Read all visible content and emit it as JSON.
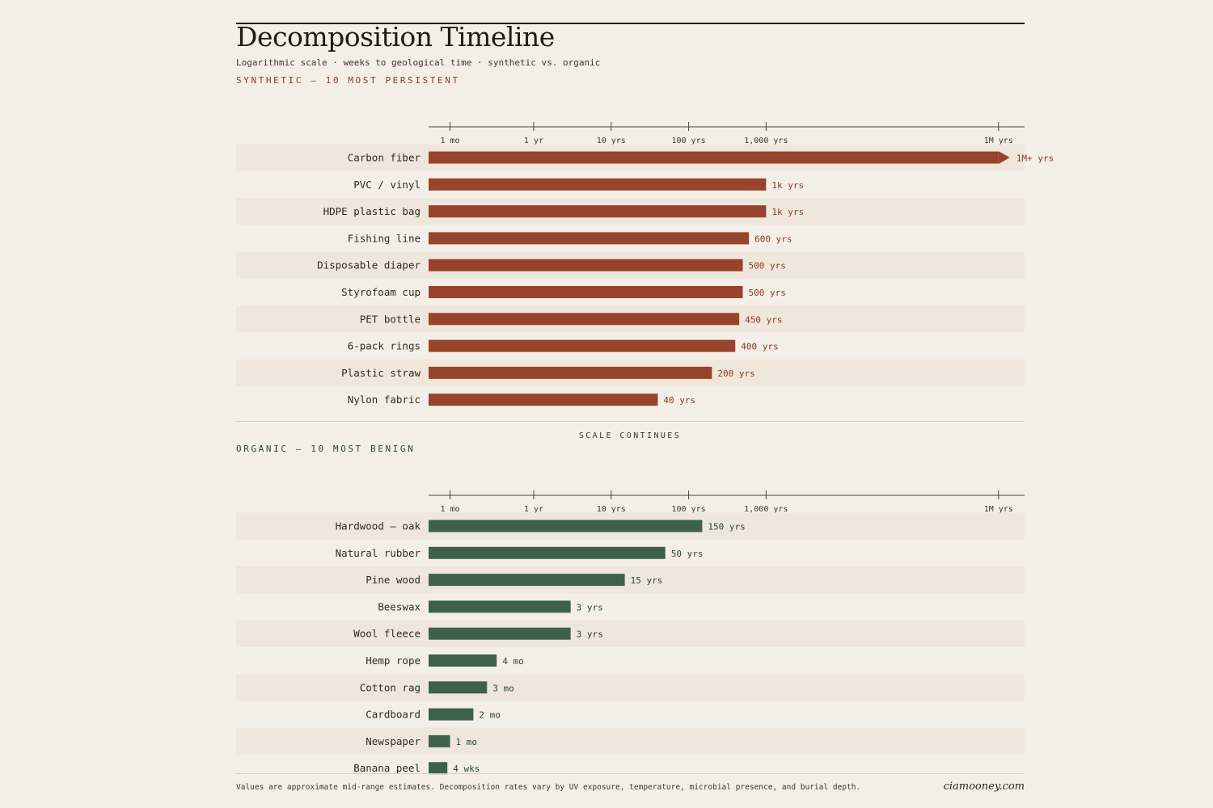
{
  "header": {
    "title": "Decomposition Timeline",
    "subtitle": "Logarithmic scale · weeks to geological time · synthetic vs. organic"
  },
  "sections": {
    "synthetic_label": "SYNTHETIC — 10 MOST PERSISTENT",
    "scale_continues": "SCALE CONTINUES",
    "organic_label": "ORGANIC — 10 MOST BENIGN"
  },
  "footer": {
    "note": "Values are approximate mid-range estimates. Decomposition rates vary by UV exposure, temperature, microbial presence, and burial depth.",
    "source": "ciamooney.com"
  },
  "colors": {
    "synthetic": "#98432b",
    "organic": "#3d6249",
    "synthetic_text": "#8c3a1e",
    "organic_text": "#2c4632",
    "band": "#efe7dc",
    "axis": "#4a4540"
  },
  "chart_data": [
    {
      "type": "bar",
      "orientation": "horizontal",
      "title": "SYNTHETIC — 10 MOST PERSISTENT",
      "x_scale": "log",
      "x_unit": "years",
      "xlim": [
        0.044,
        2000000
      ],
      "ticks": [
        {
          "value": 0.0833,
          "label": "1 mo"
        },
        {
          "value": 1,
          "label": "1 yr"
        },
        {
          "value": 10,
          "label": "10 yrs"
        },
        {
          "value": 100,
          "label": "100 yrs"
        },
        {
          "value": 1000,
          "label": "1,000 yrs"
        },
        {
          "value": 1000000,
          "label": "1M yrs"
        }
      ],
      "categories": [
        "Carbon fiber",
        "PVC / vinyl",
        "HDPE plastic bag",
        "Fishing line",
        "Disposable diaper",
        "Styrofoam cup",
        "PET bottle",
        "6-pack rings",
        "Plastic straw",
        "Nylon fabric"
      ],
      "values": [
        1000000,
        1000,
        1000,
        600,
        500,
        500,
        450,
        400,
        200,
        40
      ],
      "value_labels": [
        "1M+ yrs",
        "1k yrs",
        "1k yrs",
        "600 yrs",
        "500 yrs",
        "500 yrs",
        "450 yrs",
        "400 yrs",
        "200 yrs",
        "40 yrs"
      ],
      "arrow_on_first": true
    },
    {
      "type": "bar",
      "orientation": "horizontal",
      "title": "ORGANIC — 10 MOST BENIGN",
      "x_scale": "log",
      "x_unit": "years",
      "xlim": [
        0.044,
        2000000
      ],
      "ticks": [
        {
          "value": 0.0833,
          "label": "1 mo"
        },
        {
          "value": 1,
          "label": "1 yr"
        },
        {
          "value": 10,
          "label": "10 yrs"
        },
        {
          "value": 100,
          "label": "100 yrs"
        },
        {
          "value": 1000,
          "label": "1,000 yrs"
        },
        {
          "value": 1000000,
          "label": "1M yrs"
        }
      ],
      "categories": [
        "Hardwood — oak",
        "Natural rubber",
        "Pine wood",
        "Beeswax",
        "Wool fleece",
        "Hemp rope",
        "Cotton rag",
        "Cardboard",
        "Newspaper",
        "Banana peel"
      ],
      "values": [
        150,
        50,
        15,
        3,
        3,
        0.333,
        0.25,
        0.1667,
        0.0833,
        0.0769
      ],
      "value_labels": [
        "150 yrs",
        "50 yrs",
        "15 yrs",
        "3 yrs",
        "3 yrs",
        "4 mo",
        "3 mo",
        "2 mo",
        "1 mo",
        "4 wks"
      ],
      "arrow_on_first": false
    }
  ]
}
